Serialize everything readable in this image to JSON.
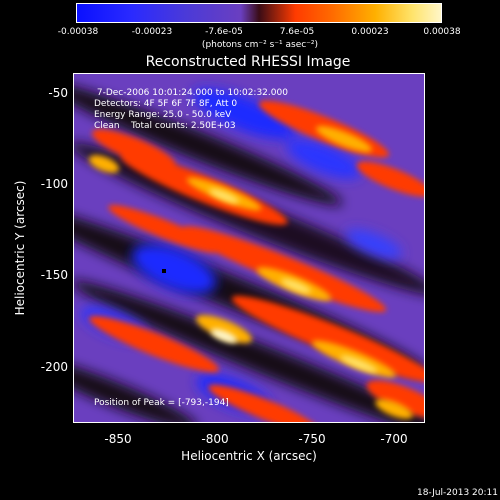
{
  "colorbar": {
    "ticks": [
      "-0.00038",
      "-0.00023",
      "-7.6e-05",
      "7.6e-05",
      "0.00023",
      "0.00038"
    ],
    "units": "(photons cm⁻² s⁻¹ asec⁻²)"
  },
  "image": {
    "title": "Reconstructed RHESSI Image",
    "info_line_1": " 7-Dec-2006 10:01:24.000 to 10:02:32.000",
    "info_line_2": "Detectors: 4F 5F 6F 7F 8F, Att 0",
    "info_line_3": "Energy Range: 25.0 - 50.0 keV",
    "info_line_4": "Clean    Total counts: 2.50E+03",
    "peak_label": "Position of Peak = [-793,-194]"
  },
  "axes": {
    "xlabel": "Heliocentric X (arcsec)",
    "ylabel": "Heliocentric Y (arcsec)",
    "xticks": [
      "-850",
      "-800",
      "-750",
      "-700"
    ],
    "yticks": [
      "-50",
      "-100",
      "-150",
      "-200"
    ]
  },
  "footer": {
    "timestamp": "18-Jul-2013 20:11"
  },
  "colors": {
    "background": "#000000",
    "neutral_purple": "#6a3fbf",
    "negative_blue": "#1a2bff",
    "positive_red": "#ff3b00",
    "positive_yellow": "#ffe36a"
  }
}
